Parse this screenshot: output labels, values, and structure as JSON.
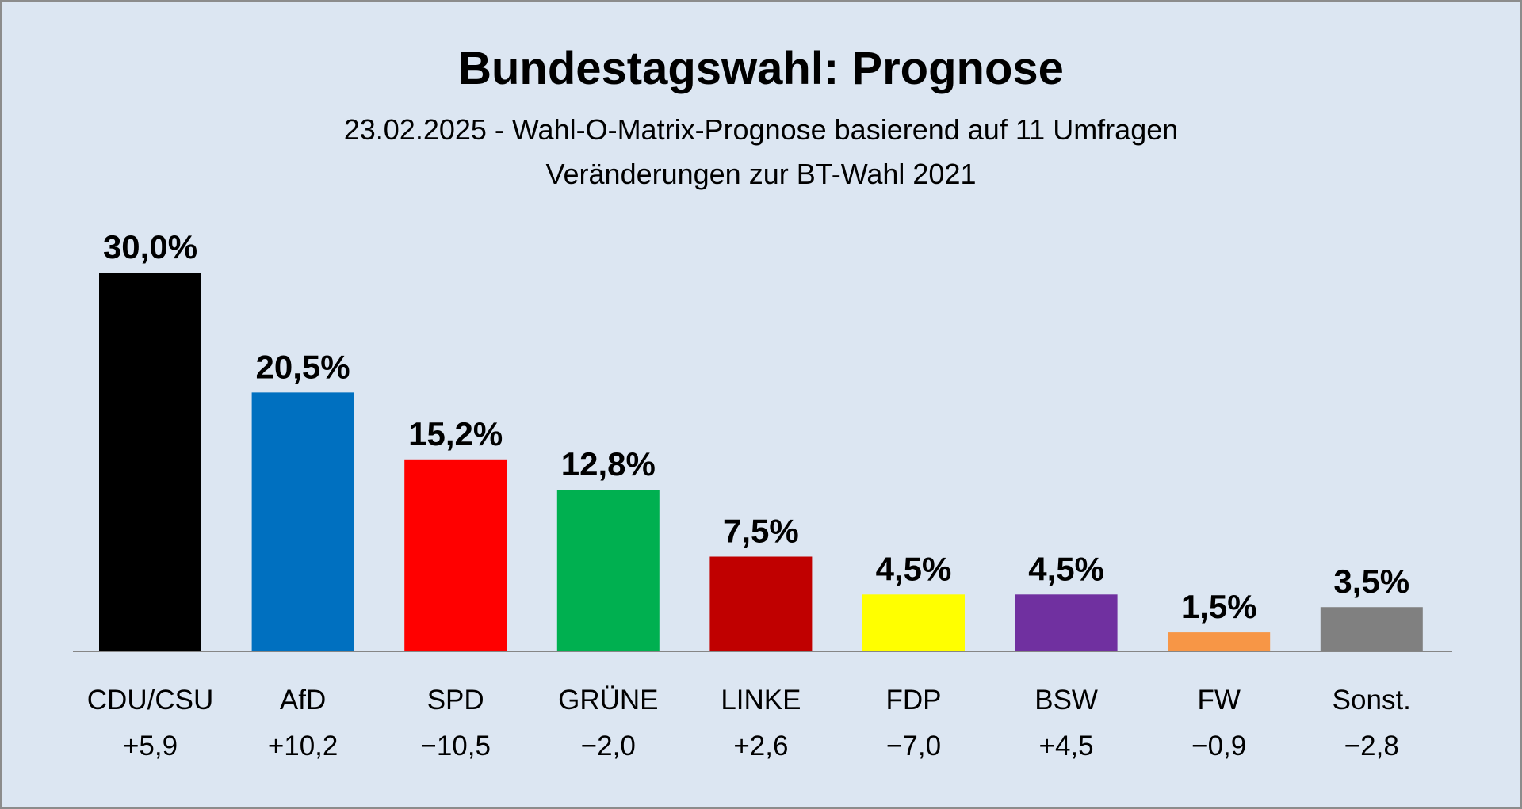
{
  "chart_data": {
    "type": "bar",
    "title": "Bundestagswahl: Prognose",
    "subtitle": "23.02.2025 - Wahl-O-Matrix-Prognose basierend auf 11 Umfragen",
    "subtitle2": "Veränderungen zur BT-Wahl 2021",
    "categories": [
      "CDU/CSU",
      "AfD",
      "SPD",
      "GRÜNE",
      "LINKE",
      "FDP",
      "BSW",
      "FW",
      "Sonst."
    ],
    "values": [
      30.0,
      20.5,
      15.2,
      12.8,
      7.5,
      4.5,
      4.5,
      1.5,
      3.5
    ],
    "value_labels": [
      "30,0%",
      "20,5%",
      "15,2%",
      "12,8%",
      "7,5%",
      "4,5%",
      "4,5%",
      "1,5%",
      "3,5%"
    ],
    "changes": [
      "+5,9",
      "+10,2",
      "−10,5",
      "−2,0",
      "+2,6",
      "−7,0",
      "+4,5",
      "−0,9",
      "−2,8"
    ],
    "colors": [
      "#000000",
      "#0070c0",
      "#ff0000",
      "#00b050",
      "#c00000",
      "#ffff00",
      "#7030a0",
      "#f79646",
      "#808080"
    ],
    "ylim": [
      0,
      30
    ],
    "grid": false,
    "xlabel": "",
    "ylabel": ""
  }
}
